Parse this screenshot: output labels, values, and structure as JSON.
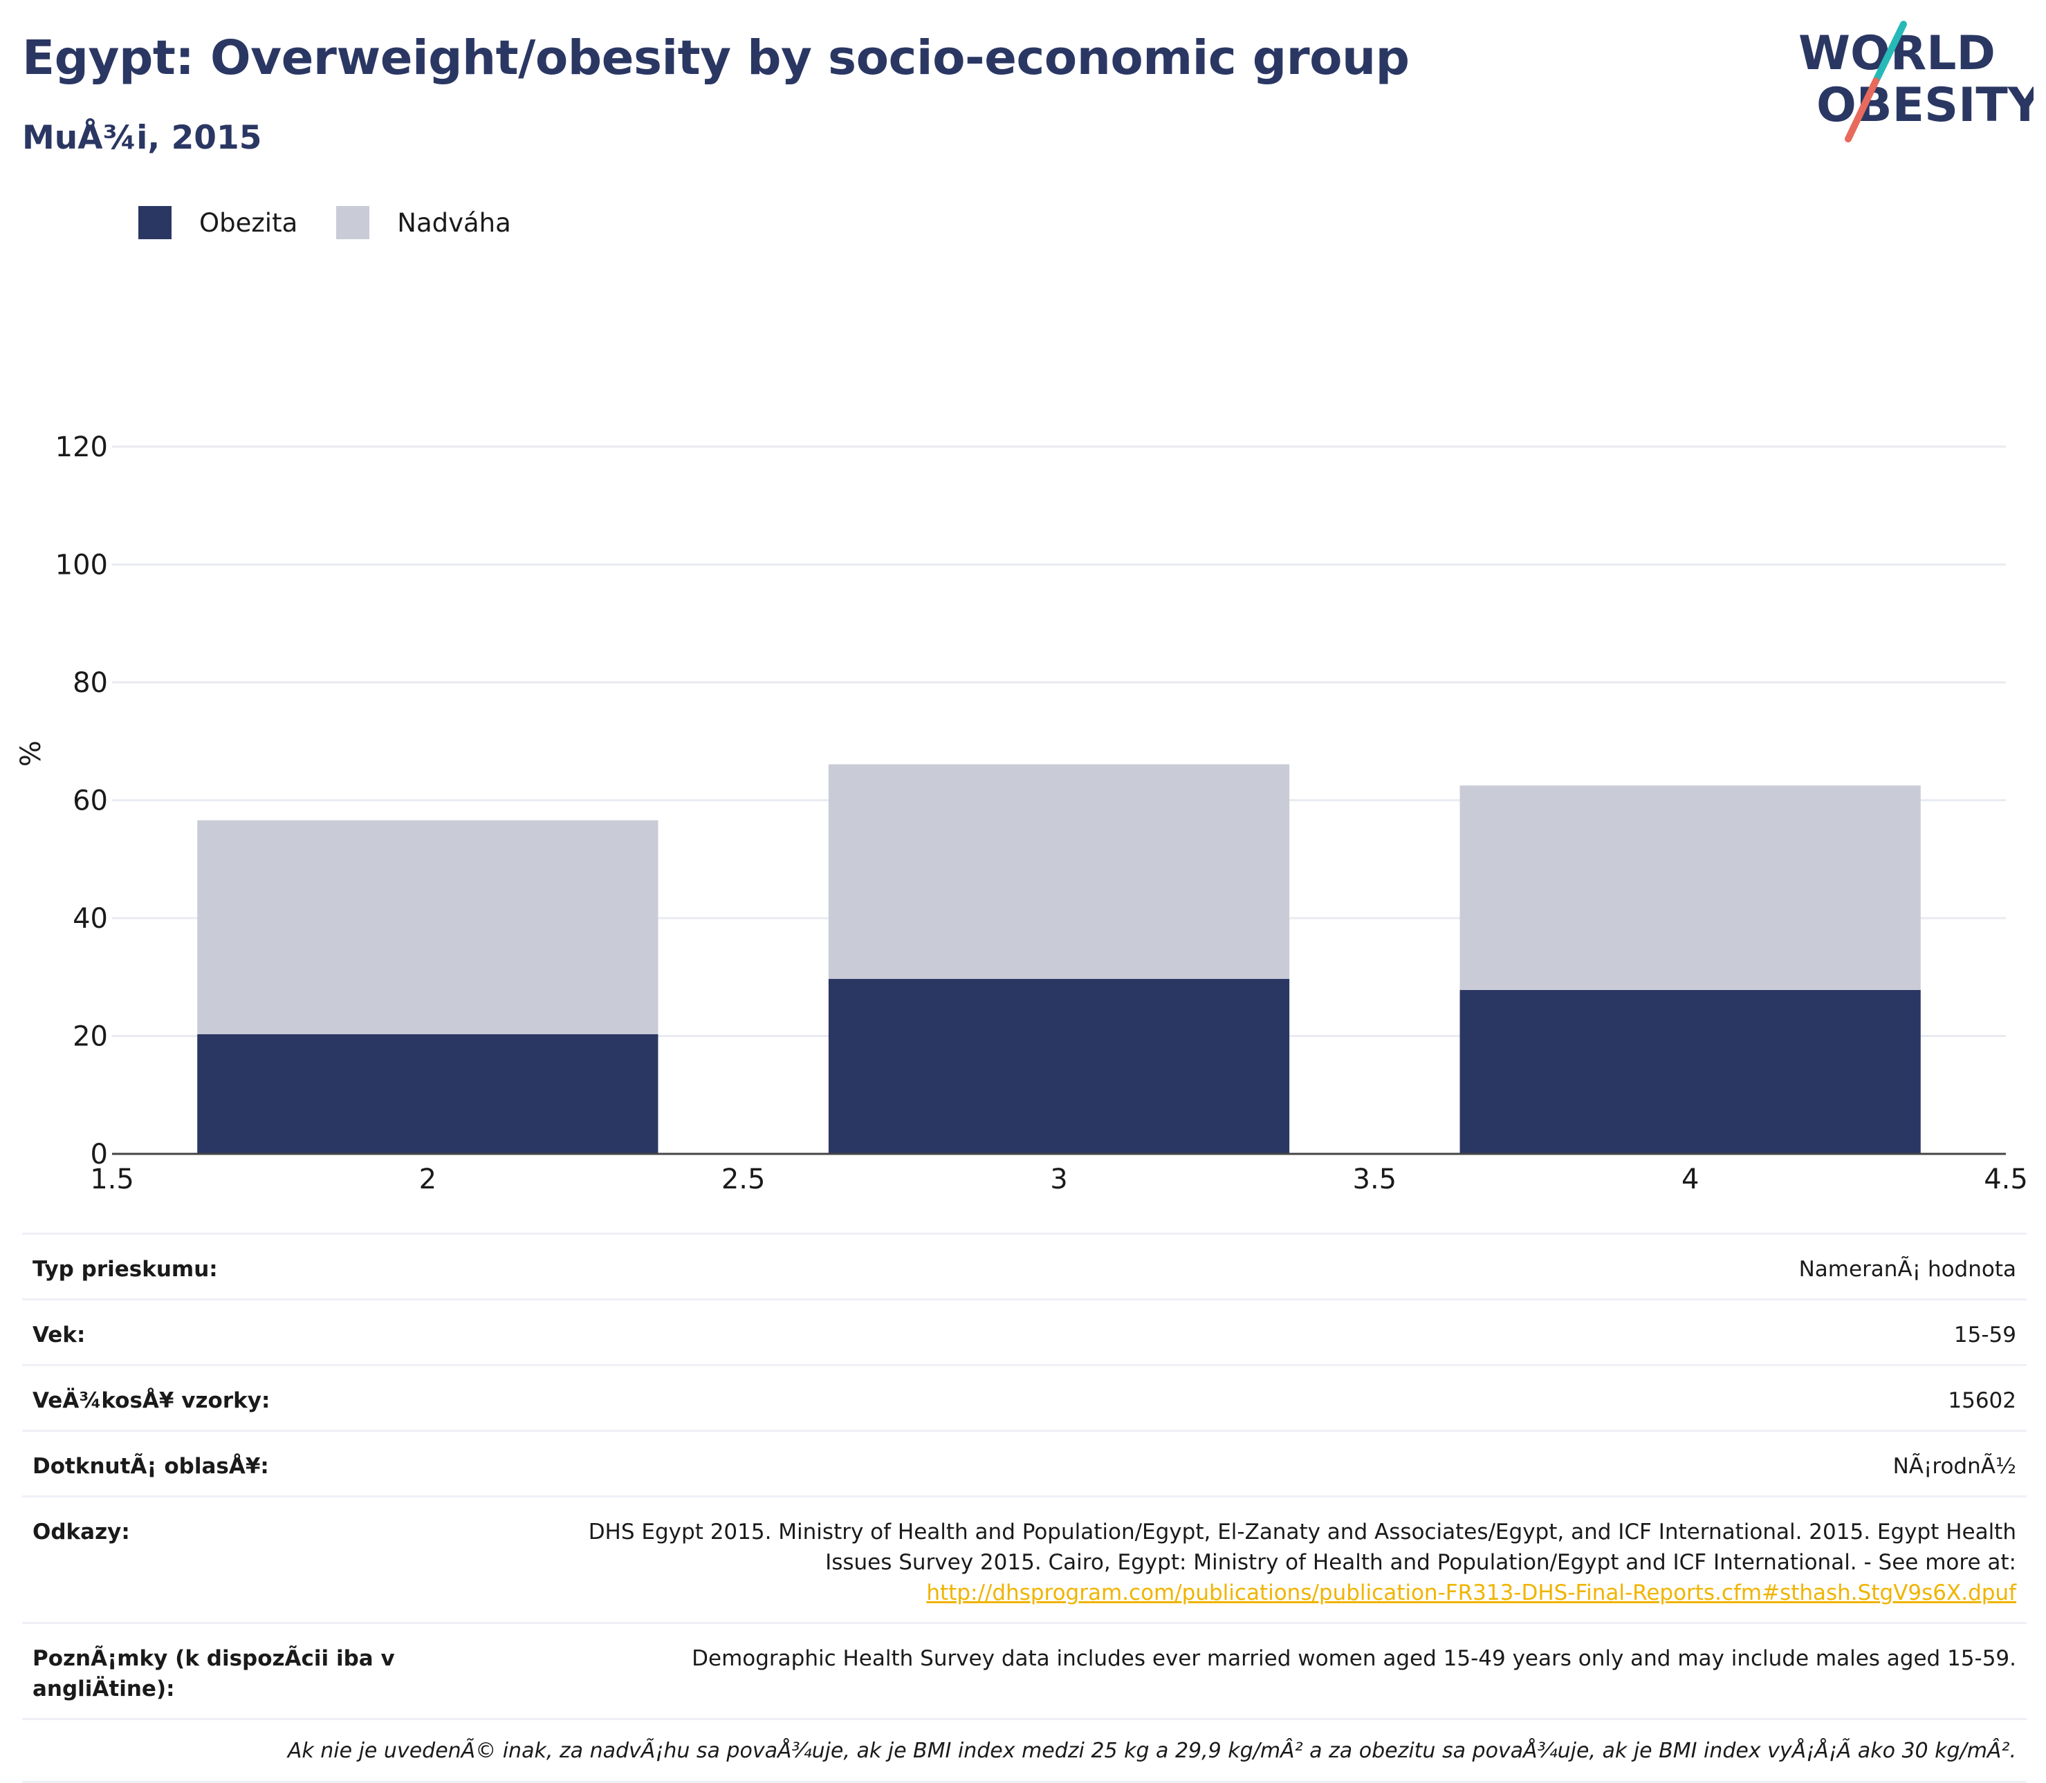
{
  "header": {
    "title": "Egypt: Overweight/obesity by socio-economic group",
    "subtitle": "MuÅ¾i, 2015"
  },
  "logo": {
    "line1": "WORLD",
    "line2": "OBESITY"
  },
  "colors": {
    "obesity": "#2b3763",
    "overweight": "#c9cbd7",
    "title": "#2b3763",
    "link": "#f0b400",
    "accent_teal": "#27b9b7",
    "accent_coral": "#e76a5c"
  },
  "chart_data": {
    "type": "bar",
    "stacked": true,
    "x": [
      2,
      3,
      4
    ],
    "series": [
      {
        "name": "Obezita",
        "values": [
          20.3,
          29.7,
          27.8
        ],
        "color": "#2b3763"
      },
      {
        "name": "Nadváha",
        "values": [
          36.3,
          36.4,
          34.7
        ],
        "color": "#c9cbd7"
      }
    ],
    "totals": [
      56.6,
      66.1,
      62.5
    ],
    "xlim": [
      1.5,
      4.5
    ],
    "xticks": [
      "1.5",
      "2",
      "2.5",
      "3",
      "3.5",
      "4",
      "4.5"
    ],
    "ylim": [
      0,
      120
    ],
    "yticks": [
      "0",
      "20",
      "40",
      "60",
      "80",
      "100",
      "120"
    ],
    "ylabel": "%",
    "xlabel": "",
    "grid": true,
    "legend_position": "top-left"
  },
  "info": {
    "rows": [
      {
        "label": "Typ prieskumu:",
        "value": "NameranÃ¡ hodnota"
      },
      {
        "label": "Vek:",
        "value": "15-59"
      },
      {
        "label": "VeÄ¾kosÅ¥ vzorky:",
        "value": "15602"
      },
      {
        "label": "DotknutÃ¡ oblasÅ¥:",
        "value": "NÃ¡rodnÃ½"
      }
    ],
    "references": {
      "label": "Odkazy:",
      "line1": "DHS Egypt 2015. Ministry of Health and Population/Egypt, El-Zanaty and Associates/Egypt, and ICF International. 2015. Egypt Health",
      "line2": "Issues Survey 2015. Cairo, Egypt: Ministry of Health and Population/Egypt and ICF International. - See more at:",
      "link": "http://dhsprogram.com/publications/publication-FR313-DHS-Final-Reports.cfm#sthash.StgV9s6X.dpuf"
    },
    "notes": {
      "label": "PoznÃ¡mky (k dispozÃcii iba v angliÄ\btine):",
      "value": "Demographic Health Survey data includes ever married women aged 15-49 years only and may include males aged 15-59."
    },
    "footnote": "Ak nie je uvedenÃ© inak, za nadvÃ¡hu sa povaÅ¾uje, ak je BMI index medzi 25 kg a 29,9 kg/mÂ² a za obezitu sa povaÅ¾uje, ak je BMI index vyÅ¡Å¡Ã ako 30 kg/mÂ²."
  }
}
